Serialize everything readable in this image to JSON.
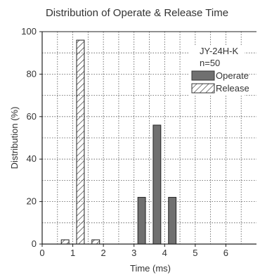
{
  "chart_data": {
    "type": "bar",
    "title": "Distribution of Operate & Release Time",
    "xlabel": "Time (ms)",
    "ylabel": "Distribution (%)",
    "xlim": [
      0,
      7
    ],
    "ylim": [
      0,
      100
    ],
    "xticks": [
      0,
      1,
      2,
      3,
      4,
      5,
      6
    ],
    "yticks": [
      0,
      20,
      40,
      60,
      80,
      100
    ],
    "grid": true,
    "legend_position": "top-right",
    "annotation_lines": [
      "JY-24H-K",
      "n=50"
    ],
    "bin_width": 0.25,
    "series": [
      {
        "name": "Release",
        "pattern": "diagonal-hatch",
        "points": [
          {
            "x": 0.75,
            "y": 2
          },
          {
            "x": 1.25,
            "y": 96
          },
          {
            "x": 1.75,
            "y": 2
          }
        ]
      },
      {
        "name": "Operate",
        "color": "#707070",
        "points": [
          {
            "x": 3.25,
            "y": 22
          },
          {
            "x": 3.75,
            "y": 56
          },
          {
            "x": 4.25,
            "y": 22
          }
        ]
      }
    ]
  }
}
